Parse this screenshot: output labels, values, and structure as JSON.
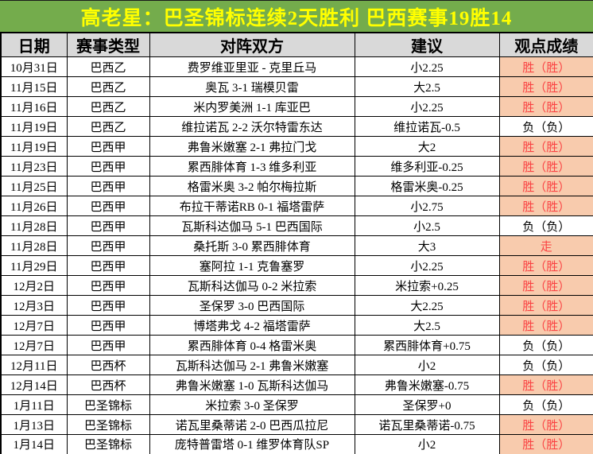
{
  "header": {
    "title": "高老星：巴圣锦标连续2天胜利 巴西赛事19胜14",
    "bg_color": "#74AC4C",
    "text_color": "#FFFF00"
  },
  "table": {
    "columns": [
      {
        "label": "日期"
      },
      {
        "label": "赛事类型"
      },
      {
        "label": "对阵双方"
      },
      {
        "label": "建议"
      },
      {
        "label": "观点成绩"
      }
    ],
    "header_bg": "#D9D9D9",
    "result_styles": {
      "win_bg": "#F8CBAD",
      "win_text": "#FA4343",
      "lose_text": "#000000"
    },
    "rows": [
      {
        "date": "10月31日",
        "league": "巴西乙",
        "match": "费罗维亚里亚 - 克里丘马",
        "advice": "小2.25",
        "result": "胜（胜）",
        "result_type": "win"
      },
      {
        "date": "11月15日",
        "league": "巴西乙",
        "match": "奥瓦 3-1 瑞模贝雷",
        "advice": "大2.5",
        "result": "胜（胜）",
        "result_type": "win"
      },
      {
        "date": "11月16日",
        "league": "巴西乙",
        "match": "米内罗美洲 1-1 库亚巴",
        "advice": "小2.25",
        "result": "胜（胜）",
        "result_type": "win"
      },
      {
        "date": "11月19日",
        "league": "巴西乙",
        "match": "维拉诺瓦 2-2 沃尔特雷东达",
        "advice": "维拉诺瓦-0.5",
        "result": "负（负）",
        "result_type": "lose"
      },
      {
        "date": "11月19日",
        "league": "巴西甲",
        "match": "弗鲁米嫩塞 2-1 弗拉门戈",
        "advice": "大2",
        "result": "胜（胜）",
        "result_type": "win"
      },
      {
        "date": "11月23日",
        "league": "巴西甲",
        "match": "累西腓体育 1-3 维多利亚",
        "advice": "维多利亚-0.25",
        "result": "胜（胜）",
        "result_type": "win"
      },
      {
        "date": "11月25日",
        "league": "巴西甲",
        "match": "格雷米奥 3-2 帕尔梅拉斯",
        "advice": "格雷米奥-0.25",
        "result": "胜（胜）",
        "result_type": "win"
      },
      {
        "date": "11月26日",
        "league": "巴西甲",
        "match": "布拉干蒂诺RB 0-1 福塔雷萨",
        "advice": "小2.75",
        "result": "胜（胜）",
        "result_type": "win"
      },
      {
        "date": "11月28日",
        "league": "巴西甲",
        "match": "瓦斯科达伽马 5-1 巴西国际",
        "advice": "小2.5",
        "result": "负（负）",
        "result_type": "lose"
      },
      {
        "date": "11月28日",
        "league": "巴西甲",
        "match": "桑托斯 3-0 累西腓体育",
        "advice": "大3",
        "result": "走",
        "result_type": "push"
      },
      {
        "date": "11月29日",
        "league": "巴西甲",
        "match": "塞阿拉 1-1 克鲁塞罗",
        "advice": "小2.25",
        "result": "胜（胜）",
        "result_type": "win"
      },
      {
        "date": "12月2日",
        "league": "巴西甲",
        "match": "瓦斯科达伽马 0-2 米拉索",
        "advice": "米拉索+0.25",
        "result": "胜（胜）",
        "result_type": "win"
      },
      {
        "date": "12月3日",
        "league": "巴西甲",
        "match": "圣保罗 3-0 巴西国际",
        "advice": "大2.25",
        "result": "胜（胜）",
        "result_type": "win"
      },
      {
        "date": "12月7日",
        "league": "巴西甲",
        "match": "博塔弗戈 4-2 福塔雷萨",
        "advice": "大2.5",
        "result": "胜（胜）",
        "result_type": "win"
      },
      {
        "date": "12月7日",
        "league": "巴西甲",
        "match": "累西腓体育 0-4 格雷米奥",
        "advice": "累西腓体育+0.75",
        "result": "负（负）",
        "result_type": "lose"
      },
      {
        "date": "12月11日",
        "league": "巴西杯",
        "match": "瓦斯科达伽马 2-1 弗鲁米嫩塞",
        "advice": "小2",
        "result": "负（负）",
        "result_type": "lose"
      },
      {
        "date": "12月14日",
        "league": "巴西杯",
        "match": "弗鲁米嫩塞 1-0 瓦斯科达伽马",
        "advice": "弗鲁米嫩塞-0.75",
        "result": "胜（胜）",
        "result_type": "win"
      },
      {
        "date": "1月11日",
        "league": "巴圣锦标",
        "match": "米拉索 3-0 圣保罗",
        "advice": "圣保罗+0",
        "result": "负（负）",
        "result_type": "lose"
      },
      {
        "date": "1月13日",
        "league": "巴圣锦标",
        "match": "诺瓦里桑蒂诺 2-0 巴西瓜拉尼",
        "advice": "诺瓦里桑蒂诺-0.75",
        "result": "胜（胜）",
        "result_type": "win"
      },
      {
        "date": "1月14日",
        "league": "巴圣锦标",
        "match": "庞特普雷塔 0-1 维罗体育队SP",
        "advice": "小2",
        "result": "胜（胜）",
        "result_type": "win"
      }
    ]
  }
}
